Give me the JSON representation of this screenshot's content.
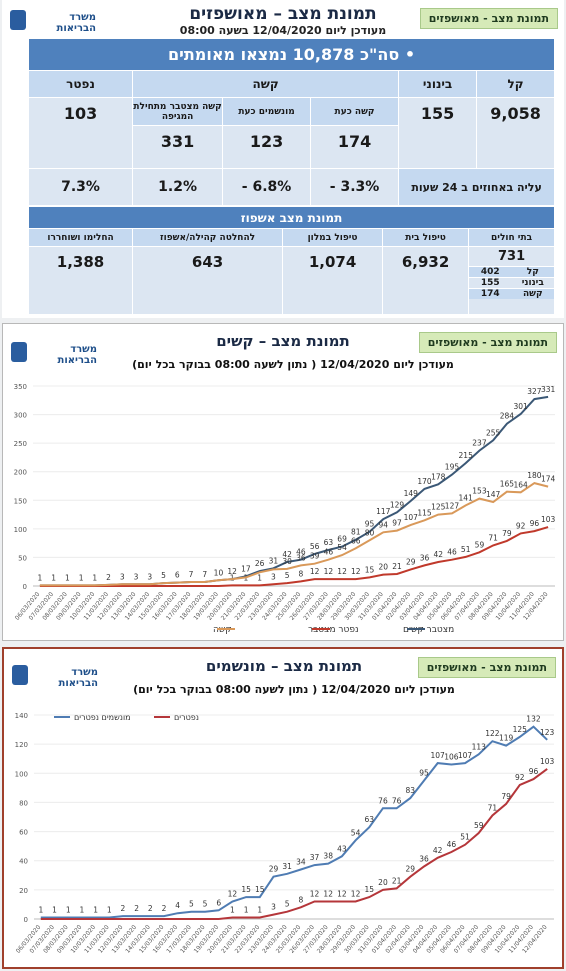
{
  "badges": [
    "תמונת מצב - מאושפזים",
    "תמונת מצב - מאושפזים",
    "תמונת מצב - מאושפזים"
  ],
  "logo": "משרד הבריאות",
  "summary": {
    "title": "תמונת מצב – מאושפזים",
    "subtitle": "מעודכן ליום 12/04/2020 בשעה 08:00",
    "total": "סה\"כ 10,878 נמצאו מאומתים",
    "headers": [
      "קל",
      "בינוני",
      "קשה",
      "נפטר"
    ],
    "severe_sub": [
      "קשה כעת",
      "מונשמים כעת",
      "קשה מצטבר מתחילת המגיפה"
    ],
    "values": [
      "9,058",
      "155",
      "174",
      "123",
      "331",
      "103"
    ],
    "change_label": "עליה באחוזים ב 24 שעות",
    "changes": [
      "- 3.3%",
      "- 6.8%",
      "1.2%",
      "7.3%"
    ],
    "hosp_title": "תמונת מצב אשפוז",
    "hosp_headers": [
      "בתי חולים",
      "טיפול בית",
      "טיפול במלון",
      "להחלטה קהילה/אשפוז",
      "החלימו ושוחררו"
    ],
    "hosp_values": [
      "731",
      "6,932",
      "1,074",
      "643",
      "1,388"
    ],
    "hosp_breakdown": [
      [
        "קל",
        "402"
      ],
      [
        "בינוני",
        "155"
      ],
      [
        "קשה",
        "174"
      ]
    ]
  },
  "chart_data": [
    {
      "type": "line",
      "title": "תמונת מצב – קשים",
      "subtitle": "מעודכן ליום 12/04/2020 ( נתון לשעה 08:00 בבוקר בכל יום)",
      "categories": [
        "06/03/2020",
        "07/03/2020",
        "08/03/2020",
        "09/03/2020",
        "10/03/2020",
        "11/03/2020",
        "12/03/2020",
        "13/03/2020",
        "14/03/2020",
        "15/03/2020",
        "16/03/2020",
        "17/03/2020",
        "18/03/2020",
        "19/03/2020",
        "20/03/2020",
        "21/03/2020",
        "22/03/2020",
        "23/03/2020",
        "24/03/2020",
        "25/03/2020",
        "26/03/2020",
        "27/03/2020",
        "28/03/2020",
        "29/03/2020",
        "30/03/2020",
        "31/03/2020",
        "01/04/2020",
        "02/04/2020",
        "03/04/2020",
        "04/04/2020",
        "05/04/2020",
        "06/04/2020",
        "07/04/2020",
        "08/04/2020",
        "09/04/2020",
        "10/04/2020",
        "11/04/2020",
        "12/04/2020"
      ],
      "series": [
        {
          "name": "מצטבר קשים",
          "color": "#3b5876",
          "values": [
            1,
            1,
            1,
            1,
            1,
            2,
            3,
            3,
            3,
            5,
            6,
            7,
            7,
            10,
            12,
            17,
            26,
            31,
            42,
            46,
            56,
            63,
            69,
            81,
            95,
            117,
            129,
            149,
            170,
            178,
            195,
            215,
            237,
            255,
            284,
            301,
            327,
            331
          ]
        },
        {
          "name": "נפטר מצטבר",
          "color": "#c0392b",
          "values": [
            0,
            0,
            0,
            0,
            0,
            0,
            0,
            0,
            0,
            0,
            0,
            0,
            0,
            0,
            1,
            1,
            1,
            3,
            5,
            8,
            12,
            12,
            12,
            12,
            15,
            20,
            21,
            29,
            36,
            42,
            46,
            51,
            59,
            71,
            79,
            92,
            96,
            103
          ]
        },
        {
          "name": "קשה",
          "color": "#d9995a",
          "values": [
            1,
            1,
            1,
            1,
            1,
            2,
            3,
            3,
            3,
            5,
            6,
            7,
            7,
            10,
            12,
            15,
            24,
            29,
            30,
            36,
            39,
            46,
            54,
            66,
            80,
            94,
            97,
            107,
            115,
            125,
            127,
            141,
            153,
            147,
            165,
            164,
            180,
            174
          ]
        }
      ],
      "ylim": [
        0,
        350
      ],
      "yticks": [
        0,
        50,
        100,
        150,
        200,
        250,
        300,
        350
      ],
      "grid": true,
      "legend": "bottom"
    },
    {
      "type": "line",
      "title": "תמונת מצב – מונשמים",
      "subtitle": "מעודכן ליום 12/04/2020 ( נתון לשעה 08:00 בבוקר בכל יום)",
      "categories": [
        "06/03/2020",
        "07/03/2020",
        "08/03/2020",
        "09/03/2020",
        "10/03/2020",
        "11/03/2020",
        "12/03/2020",
        "13/03/2020",
        "14/03/2020",
        "15/03/2020",
        "16/03/2020",
        "17/03/2020",
        "18/03/2020",
        "19/03/2020",
        "20/03/2020",
        "21/03/2020",
        "22/03/2020",
        "23/03/2020",
        "24/03/2020",
        "25/03/2020",
        "26/03/2020",
        "27/03/2020",
        "28/03/2020",
        "29/03/2020",
        "30/03/2020",
        "31/03/2020",
        "01/04/2020",
        "02/04/2020",
        "03/04/2020",
        "04/04/2020",
        "05/04/2020",
        "06/04/2020",
        "07/04/2020",
        "08/04/2020",
        "09/04/2020",
        "10/04/2020",
        "11/04/2020",
        "12/04/2020"
      ],
      "series": [
        {
          "name": "מונשמים נפטרים",
          "color": "#4f7cb3",
          "values": [
            1,
            1,
            1,
            1,
            1,
            1,
            2,
            2,
            2,
            2,
            4,
            5,
            5,
            6,
            12,
            15,
            15,
            29,
            31,
            34,
            37,
            38,
            43,
            54,
            63,
            76,
            76,
            83,
            95,
            107,
            106,
            107,
            113,
            122,
            119,
            125,
            132,
            123
          ]
        },
        {
          "name": "נפטרים",
          "color": "#b5363a",
          "values": [
            0,
            0,
            0,
            0,
            0,
            0,
            0,
            0,
            0,
            0,
            0,
            0,
            0,
            0,
            1,
            1,
            1,
            3,
            5,
            8,
            12,
            12,
            12,
            12,
            15,
            20,
            21,
            29,
            36,
            42,
            46,
            51,
            59,
            71,
            79,
            92,
            96,
            103
          ]
        }
      ],
      "ylim": [
        0,
        140
      ],
      "yticks": [
        0,
        20,
        40,
        60,
        80,
        100,
        120,
        140
      ],
      "grid": true,
      "legend": "upper left"
    }
  ]
}
